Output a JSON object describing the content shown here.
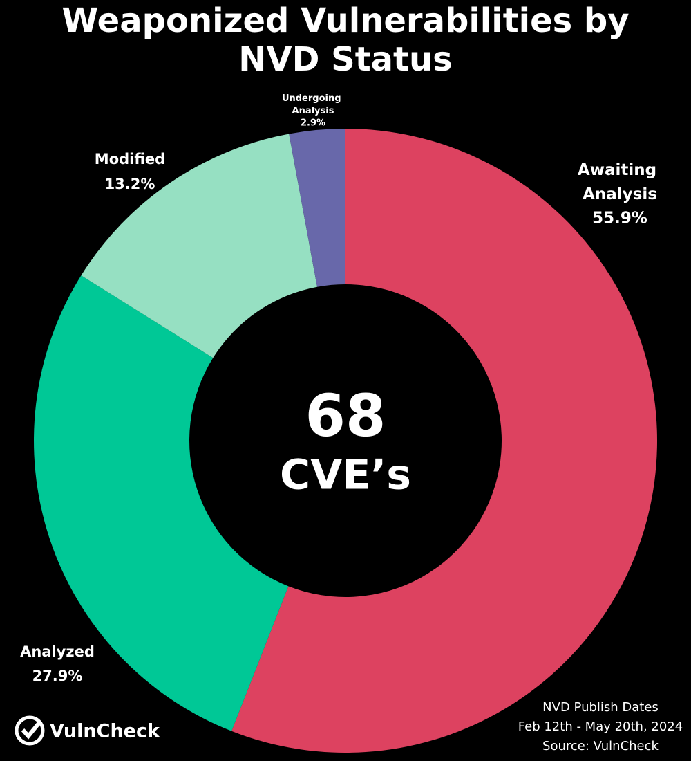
{
  "chart_data": {
    "type": "donut",
    "title": "Weaponized Vulnerabilities by NVD Status",
    "categories": [
      "Awaiting Analysis",
      "Analyzed",
      "Modified",
      "Undergoing Analysis"
    ],
    "values": [
      55.9,
      27.9,
      13.2,
      2.9
    ],
    "value_labels": [
      "55.9%",
      "27.9%",
      "13.2%",
      "2.9%"
    ],
    "colors": [
      "#dd4260",
      "#00c896",
      "#96e0c2",
      "#6868aa"
    ],
    "center_value": "68",
    "center_label": "CVE’s",
    "footnote": [
      "NVD Publish Dates",
      "Feb 12th - May 20th, 2024",
      "Source: VulnCheck"
    ],
    "logo": "VulnCheck"
  }
}
